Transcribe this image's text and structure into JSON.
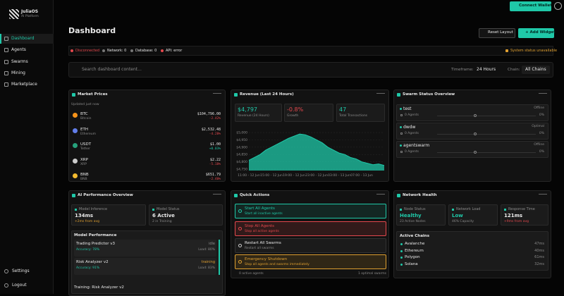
{
  "sidebar": {
    "brand": "JuliaOS",
    "tagline": "AI Platform",
    "nav": [
      "Dashboard",
      "Agents",
      "Swarms",
      "Mining",
      "Marketplace"
    ],
    "footer": [
      "Settings",
      "Logout"
    ]
  },
  "topbar": {
    "connect": "Connect Wallet"
  },
  "header": {
    "title": "Dashboard",
    "reset": "Reset Layout",
    "add": "+ Add Widget"
  },
  "status": {
    "items": [
      "Disconnected",
      "Network: 0",
      "Database: 0",
      "API: error"
    ],
    "right": "System status unavailable"
  },
  "filters": {
    "search": "Search dashboard content...",
    "timeframe_label": "Timeframe:",
    "timeframe": "24 Hours",
    "chain_label": "Chain:",
    "chain": "All Chains"
  },
  "market": {
    "title": "Market Prices",
    "updated": "Updated just now",
    "coins": [
      {
        "symbol": "BTC",
        "name": "Bitcoin",
        "price": "$104,796.00",
        "change": "-2.42%"
      },
      {
        "symbol": "ETH",
        "name": "Ethereum",
        "price": "$2,532.48",
        "change": "-4.28%"
      },
      {
        "symbol": "USDT",
        "name": "Tether",
        "price": "$1.00",
        "change": "+0.03%"
      },
      {
        "symbol": "XRP",
        "name": "XRP",
        "price": "$2.22",
        "change": "-5.18%"
      },
      {
        "symbol": "BNB",
        "name": "BNB",
        "price": "$651.79",
        "change": "-2.40%"
      }
    ]
  },
  "revenue": {
    "title": "Revenue (Last 24 Hours)",
    "stats": [
      {
        "value": "$4,797",
        "label": "Revenue (24 Hours)"
      },
      {
        "value": "-0.8%",
        "label": "Growth"
      },
      {
        "value": "47",
        "label": "Total Transactions"
      }
    ]
  },
  "chart_data": {
    "type": "area",
    "color": "#1fc8a8",
    "x": [
      "11:00 - 12 Jun",
      null,
      null,
      null,
      "15:00 - 12 Jun",
      null,
      null,
      null,
      "19:00 - 12 Jun",
      null,
      null,
      null,
      "23:00 - 12 Jun",
      null,
      null,
      null,
      "03:00 - 13 Jun",
      null,
      null,
      null,
      "07:00 - 13 Jun",
      null,
      null,
      null,
      null
    ],
    "values": [
      4810,
      4830,
      4850,
      4880,
      4900,
      4920,
      4940,
      4960,
      4975,
      4990,
      4985,
      4970,
      4950,
      4930,
      4900,
      4880,
      4860,
      4850,
      4830,
      4820,
      4800,
      4790,
      4780,
      4785,
      4775
    ],
    "ylim": [
      4740,
      5010
    ],
    "yticks": [
      {
        "value": 5000,
        "label": "$5,000"
      },
      {
        "value": 4950,
        "label": "$4,950"
      },
      {
        "value": 4900,
        "label": "$4,900"
      },
      {
        "value": 4850,
        "label": "$4,850"
      },
      {
        "value": 4800,
        "label": "$4,800"
      },
      {
        "value": 4750,
        "label": "$4,750"
      }
    ],
    "grid": true
  },
  "swarms": {
    "title": "Swarm Status Overview",
    "items": [
      {
        "name": "test",
        "status": "Offline",
        "agents": "0 Agents",
        "pct": "0%"
      },
      {
        "name": "dwdw",
        "status": "Optimal",
        "agents": "0 Agents",
        "pct": "0%"
      },
      {
        "name": "agentswarm",
        "status": "Offline",
        "agents": "0 Agents",
        "pct": "0%"
      }
    ]
  },
  "ai": {
    "title": "AI Performance Overview",
    "stats": [
      {
        "label": "Model Inference",
        "value": "134ms",
        "note": "+2ms from avg"
      },
      {
        "label": "Model Status",
        "value": "6 Active",
        "note": "2 in Training"
      }
    ],
    "perf_title": "Model Performance",
    "models": [
      {
        "name": "Trading Predictor v3",
        "state": "idle",
        "accuracy": "Accuracy: 78%",
        "load": "Load: 80%"
      },
      {
        "name": "Risk Analyzer v2",
        "state": "training",
        "accuracy": "Accuracy: 91%",
        "load": "Load: 83%"
      }
    ],
    "training": "Training: Risk Analyzer v2"
  },
  "quick": {
    "title": "Quick Actions",
    "actions": [
      {
        "title": "Start All Agents",
        "desc": "Start all inactive agents"
      },
      {
        "title": "Stop All Agents",
        "desc": "Stop all active agents"
      },
      {
        "title": "Restart All Swarms",
        "desc": "Restart all swarms"
      },
      {
        "title": "Emergency Shutdown",
        "desc": "Stop all agents and swarms immediately"
      }
    ],
    "footer_left": "0 active agents",
    "footer_right": "1 optimal swarms"
  },
  "network": {
    "title": "Network Health",
    "stats": [
      {
        "label": "Node Status",
        "value": "Healthy",
        "note": "23 Active Nodes"
      },
      {
        "label": "Network Load",
        "value": "Low",
        "note": "46% Capacity"
      },
      {
        "label": "Response Time",
        "value": "121ms",
        "note": "+9ms from avg"
      }
    ],
    "chains_title": "Active Chains",
    "chains": [
      {
        "name": "Avalanche",
        "latency": "47ms"
      },
      {
        "name": "Ethereum",
        "latency": "40ms"
      },
      {
        "name": "Polygon",
        "latency": "61ms"
      },
      {
        "name": "Solana",
        "latency": "32ms"
      }
    ]
  }
}
